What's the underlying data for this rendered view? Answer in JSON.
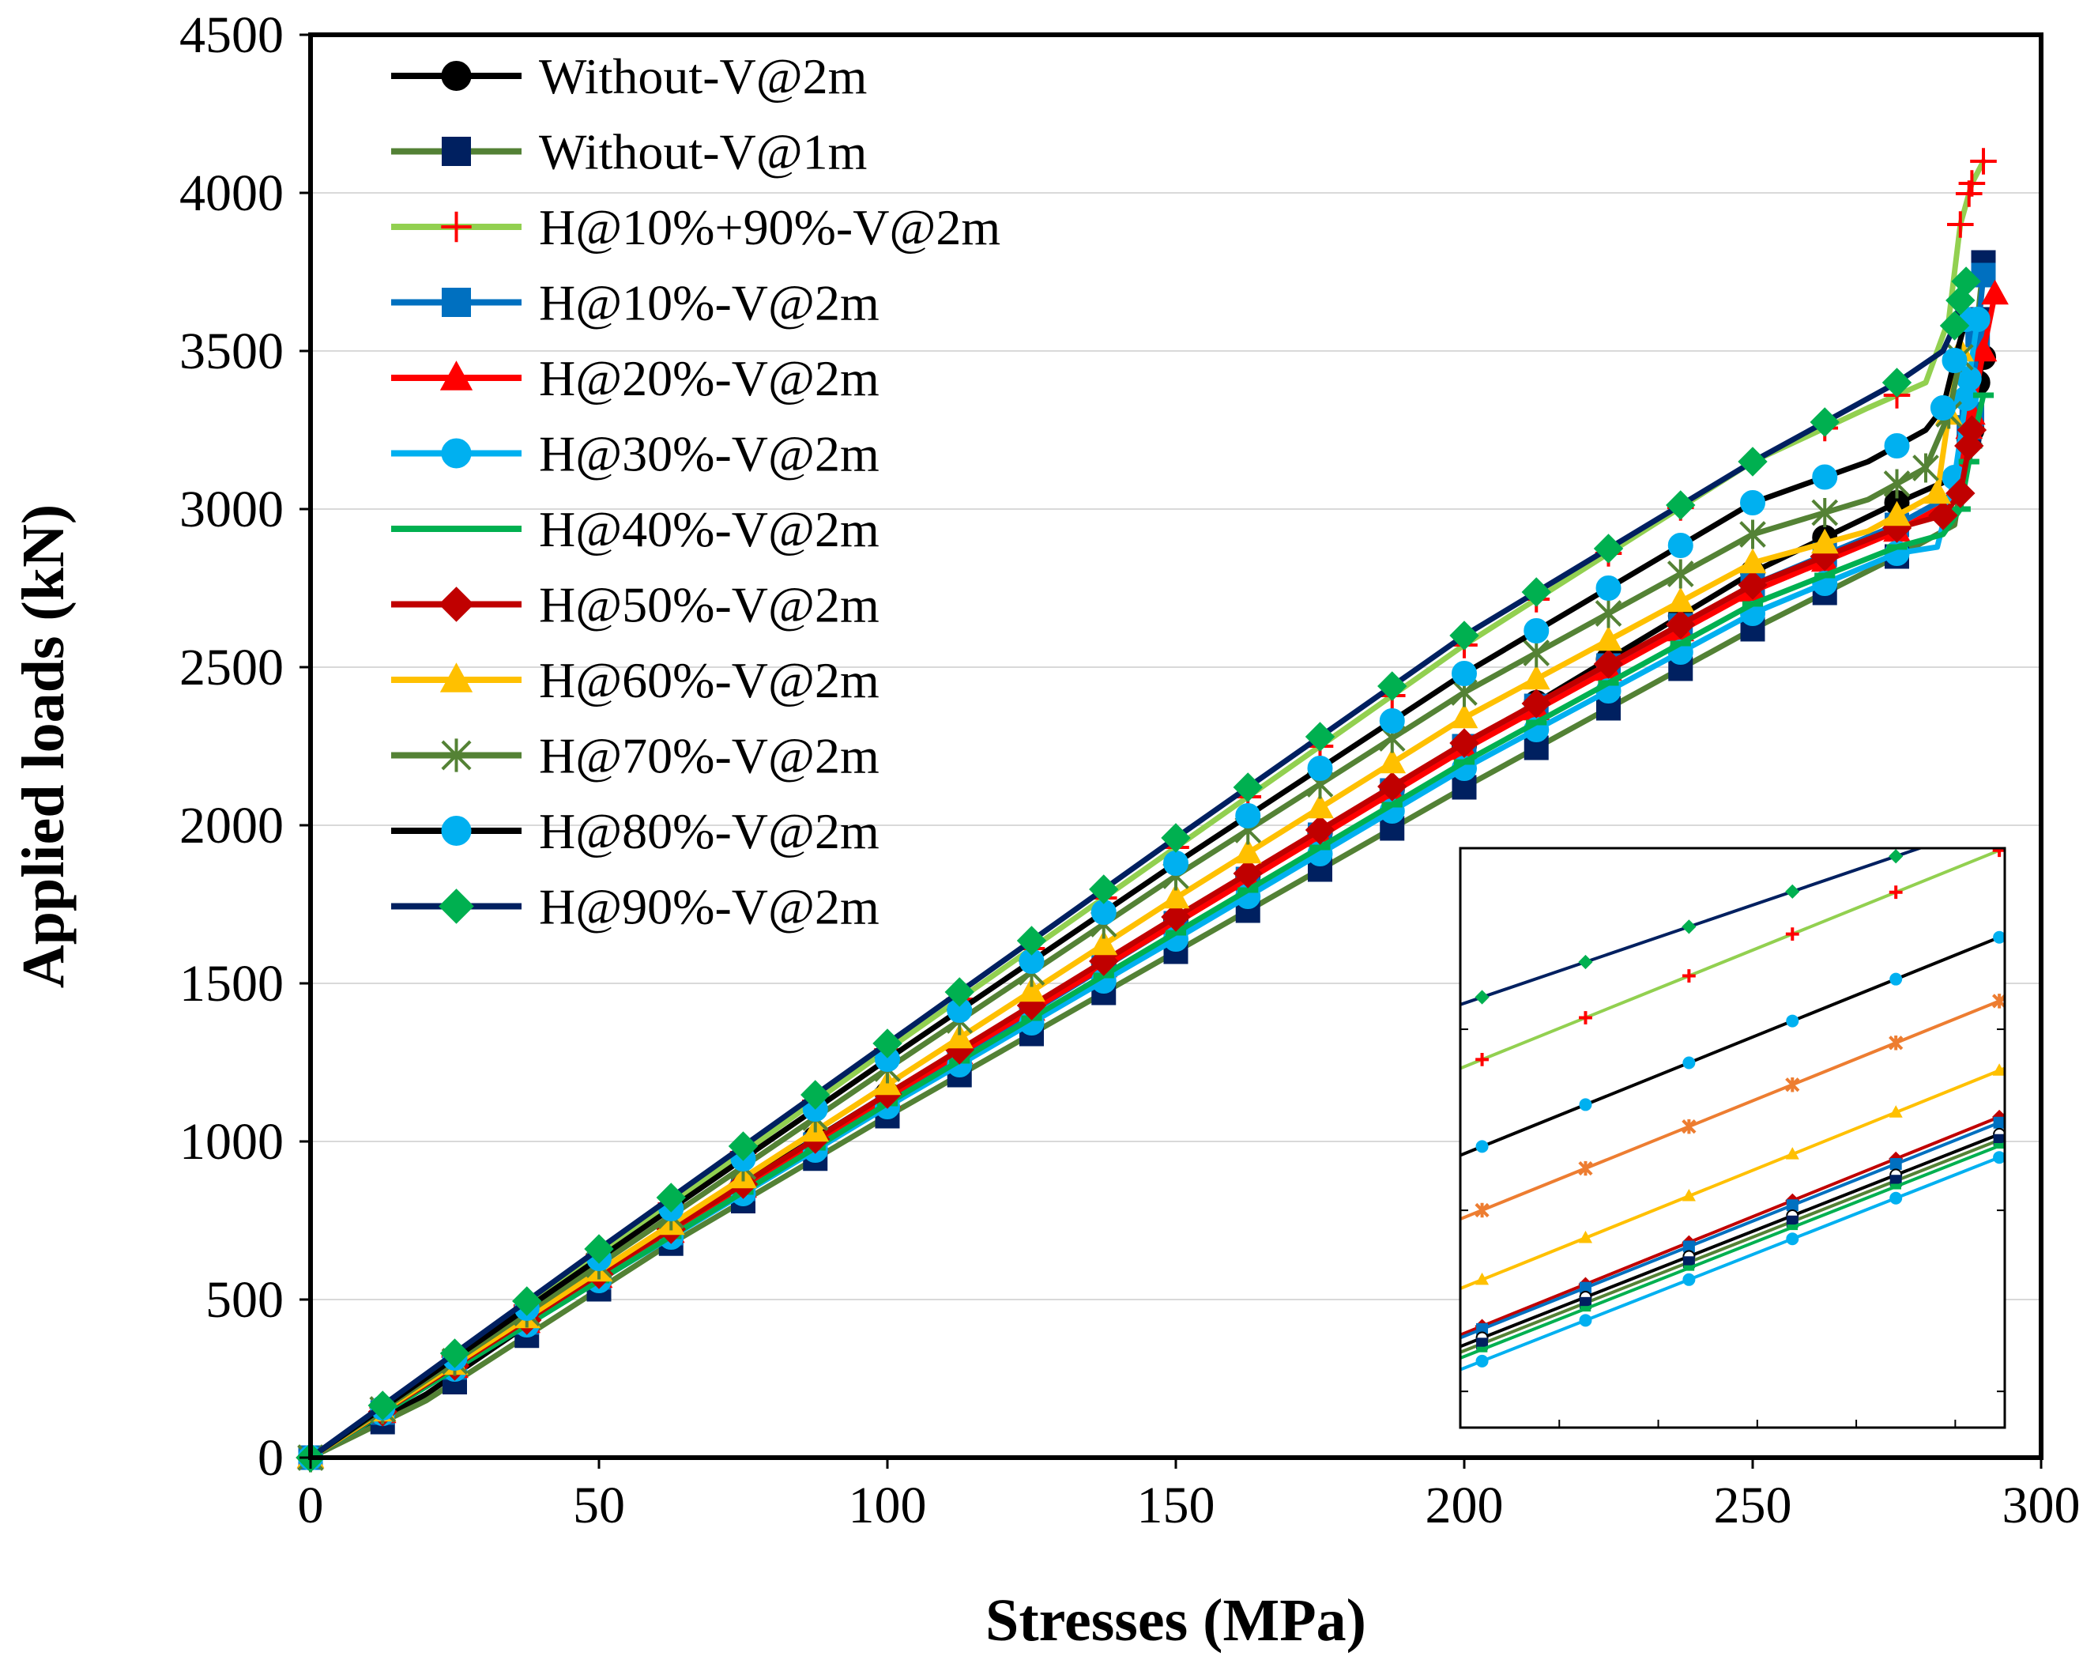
{
  "chart_data": {
    "type": "line",
    "title": "",
    "xlabel": "Stresses (MPa)",
    "ylabel": "Applied loads (kN)",
    "xlim": [
      0,
      300
    ],
    "ylim": [
      0,
      4500
    ],
    "xticks": [
      "0",
      "50",
      "100",
      "150",
      "200",
      "250",
      "300"
    ],
    "yticks": [
      "0",
      "500",
      "1000",
      "1500",
      "2000",
      "2500",
      "3000",
      "3500",
      "4000",
      "4500"
    ],
    "grid": "horizontal",
    "legend_position": "top-left",
    "series": [
      {
        "name": "Without-V@2m",
        "color": "#000000",
        "marker": "circle",
        "x": [
          0,
          20,
          60,
          100,
          150,
          200,
          250,
          275,
          285,
          288,
          289,
          290
        ],
        "y": [
          0,
          200,
          700,
          1150,
          1700,
          2250,
          2800,
          3020,
          3100,
          3250,
          3400,
          3480
        ]
      },
      {
        "name": "Without-V@1m",
        "color": "#538135",
        "marker": "square",
        "marker_color": "#002060",
        "x": [
          0,
          20,
          60,
          100,
          150,
          200,
          250,
          275,
          285,
          288,
          289,
          290
        ],
        "y": [
          0,
          180,
          650,
          1080,
          1600,
          2120,
          2620,
          2850,
          2950,
          3300,
          3600,
          3780
        ]
      },
      {
        "name": "H@10%+90%-V@2m",
        "color": "#92D050",
        "marker": "plus",
        "marker_color": "#FF0000",
        "x": [
          0,
          50,
          100,
          150,
          200,
          250,
          270,
          280,
          284,
          286,
          288,
          290
        ],
        "y": [
          0,
          640,
          1290,
          1930,
          2570,
          3150,
          3320,
          3400,
          3600,
          3900,
          4030,
          4100
        ]
      },
      {
        "name": "H@10%-V@2m",
        "color": "#0070C0",
        "marker": "square",
        "marker_color": "#0070C0",
        "x": [
          0,
          50,
          100,
          150,
          200,
          250,
          275,
          285,
          288,
          289,
          290
        ],
        "y": [
          0,
          570,
          1130,
          1690,
          2250,
          2760,
          2950,
          3050,
          3300,
          3550,
          3740
        ]
      },
      {
        "name": "H@20%-V@2m",
        "color": "#FF0000",
        "marker": "triangle",
        "marker_color": "#FF0000",
        "x": [
          0,
          50,
          100,
          150,
          200,
          250,
          275,
          285,
          288,
          290,
          292
        ],
        "y": [
          0,
          570,
          1140,
          1690,
          2240,
          2740,
          2930,
          3030,
          3300,
          3500,
          3680
        ]
      },
      {
        "name": "H@30%-V@2m",
        "color": "#00B0F0",
        "marker": "circle",
        "marker_color": "#00B0F0",
        "x": [
          0,
          50,
          100,
          150,
          200,
          250,
          275,
          282,
          285,
          287,
          289
        ],
        "y": [
          0,
          560,
          1110,
          1640,
          2180,
          2670,
          2860,
          2880,
          3100,
          3350,
          3600
        ]
      },
      {
        "name": "H@40%-V@2m",
        "color": "#00B050",
        "marker": "dash",
        "marker_color": "#00B050",
        "x": [
          0,
          50,
          100,
          150,
          200,
          250,
          275,
          283,
          286,
          288,
          290
        ],
        "y": [
          0,
          560,
          1120,
          1660,
          2200,
          2700,
          2880,
          2920,
          3000,
          3200,
          3360
        ]
      },
      {
        "name": "H@50%-V@2m",
        "color": "#C00000",
        "marker": "diamond",
        "marker_color": "#C00000",
        "x": [
          0,
          50,
          100,
          150,
          200,
          250,
          275,
          283,
          286,
          288
        ],
        "y": [
          0,
          580,
          1150,
          1710,
          2260,
          2760,
          2940,
          2980,
          3050,
          3250
        ]
      },
      {
        "name": "H@60%-V@2m",
        "color": "#FFC000",
        "marker": "triangle",
        "marker_color": "#FFC000",
        "x": [
          0,
          50,
          100,
          150,
          200,
          250,
          270,
          282,
          284,
          286
        ],
        "y": [
          0,
          590,
          1180,
          1770,
          2340,
          2830,
          2930,
          3050,
          3300,
          3500
        ]
      },
      {
        "name": "H@70%-V@2m",
        "color": "#548235",
        "marker": "asterisk",
        "marker_color": "#548235",
        "x": [
          0,
          50,
          100,
          150,
          200,
          250,
          270,
          280,
          284,
          286
        ],
        "y": [
          0,
          610,
          1230,
          1840,
          2420,
          2920,
          3030,
          3130,
          3300,
          3480
        ]
      },
      {
        "name": "H@80%-V@2m",
        "color": "#000000",
        "marker": "circle",
        "marker_color": "#00B0F0",
        "x": [
          0,
          50,
          100,
          150,
          200,
          250,
          270,
          280,
          283,
          285,
          287
        ],
        "y": [
          0,
          630,
          1260,
          1880,
          2480,
          3020,
          3150,
          3250,
          3320,
          3470,
          3600
        ]
      },
      {
        "name": "H@90%-V@2m",
        "color": "#002060",
        "marker": "diamond",
        "marker_color": "#00B050",
        "x": [
          0,
          50,
          100,
          150,
          200,
          250,
          275,
          283,
          285,
          286,
          287
        ],
        "y": [
          0,
          660,
          1310,
          1960,
          2600,
          3150,
          3400,
          3500,
          3580,
          3660,
          3720
        ]
      }
    ],
    "inset": {
      "description": "zoomed view",
      "series": [
        {
          "color": "#002060",
          "marker": "diamond",
          "marker_color": "#00B050",
          "start": 0.73,
          "end": 1.05
        },
        {
          "color": "#92D050",
          "marker": "plus",
          "marker_color": "#FF0000",
          "start": 0.62,
          "end": 1.0
        },
        {
          "color": "#000000",
          "marker": "circle",
          "marker_color": "#00B0F0",
          "start": 0.47,
          "end": 0.85
        },
        {
          "color": "#ED7D31",
          "marker": "asterisk",
          "marker_color": "#ED7D31",
          "start": 0.36,
          "end": 0.74
        },
        {
          "color": "#FFC000",
          "marker": "triangle",
          "marker_color": "#FFC000",
          "start": 0.24,
          "end": 0.62
        },
        {
          "color": "#C00000",
          "marker": "diamond",
          "marker_color": "#C00000",
          "start": 0.16,
          "end": 0.54
        },
        {
          "color": "#0070C0",
          "marker": "square",
          "marker_color": "#0070C0",
          "start": 0.155,
          "end": 0.53
        },
        {
          "color": "#000000",
          "marker": "circle",
          "marker_color": "#FFFFFF",
          "start": 0.14,
          "end": 0.51
        },
        {
          "color": "#548235",
          "marker": "square",
          "marker_color": "#002060",
          "start": 0.13,
          "end": 0.5
        },
        {
          "color": "#00B050",
          "marker": "dash",
          "marker_color": "#00B050",
          "start": 0.12,
          "end": 0.49
        },
        {
          "color": "#00B0F0",
          "marker": "circle",
          "marker_color": "#00B0F0",
          "start": 0.1,
          "end": 0.47
        }
      ]
    }
  }
}
